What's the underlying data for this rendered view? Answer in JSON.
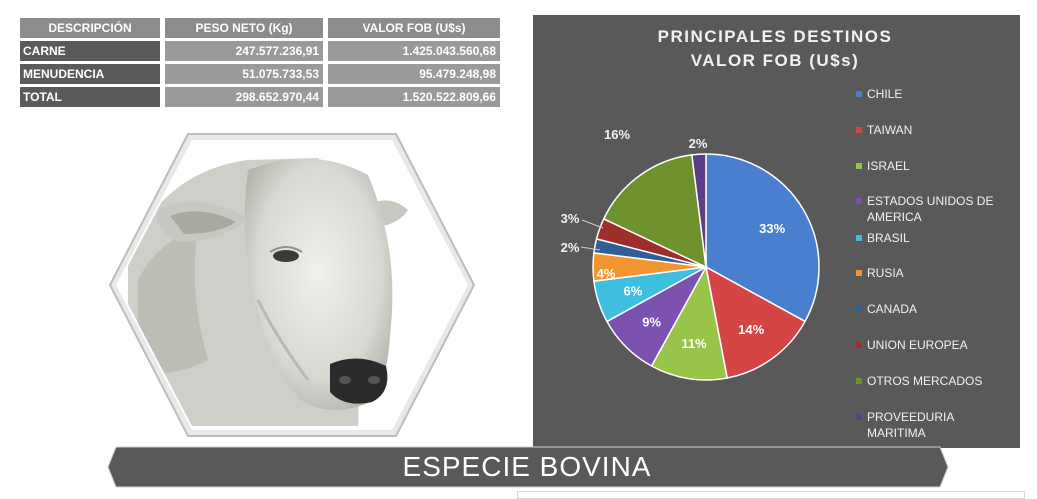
{
  "table": {
    "headers": [
      "DESCRIPCIÓN",
      "PESO NETO (Kg)",
      "VALOR FOB (U$s)"
    ],
    "rows": [
      {
        "desc": "CARNE",
        "peso": "247.577.236,91",
        "fob": "1.425.043.560,68"
      },
      {
        "desc": "MENUDENCIA",
        "peso": "51.075.733,53",
        "fob": "95.479.248,98"
      },
      {
        "desc": "TOTAL",
        "peso": "298.652.970,44",
        "fob": "1.520.522.809,66"
      }
    ]
  },
  "chart_data": {
    "type": "pie",
    "title_lines": [
      "PRINCIPALES DESTINOS",
      "VALOR FOB (U$s)"
    ],
    "categories": [
      "CHILE",
      "TAIWAN",
      "ISRAEL",
      "ESTADOS UNIDOS DE AMERICA",
      "BRASIL",
      "RUSIA",
      "CANADA",
      "UNION EUROPEA",
      "OTROS MERCADOS",
      "PROVEEDURIA MARITIMA"
    ],
    "legend_lines": [
      [
        "CHILE"
      ],
      [
        "TAIWAN"
      ],
      [
        "ISRAEL"
      ],
      [
        "ESTADOS UNIDOS DE",
        "AMERICA"
      ],
      [
        "BRASIL"
      ],
      [
        "RUSIA"
      ],
      [
        "CANADA"
      ],
      [
        "UNION EUROPEA"
      ],
      [
        "OTROS MERCADOS"
      ],
      [
        "PROVEEDURIA",
        "MARITIMA"
      ]
    ],
    "values": [
      33,
      14,
      11,
      9,
      6,
      4,
      2,
      3,
      16,
      2
    ],
    "labels": [
      "33%",
      "14%",
      "11%",
      "9%",
      "6%",
      "4%",
      "2%",
      "3%",
      "16%",
      "2%"
    ],
    "colors": [
      "#4a7fd0",
      "#d64545",
      "#98c44a",
      "#7b52b0",
      "#3fbfe0",
      "#f3962f",
      "#2f5f96",
      "#9e2d2d",
      "#6e922e",
      "#5c3e88"
    ],
    "legend_position": "right"
  },
  "banner": {
    "text": "ESPECIE  BOVINA"
  },
  "photo": {
    "subject": "cow-head-photo"
  }
}
